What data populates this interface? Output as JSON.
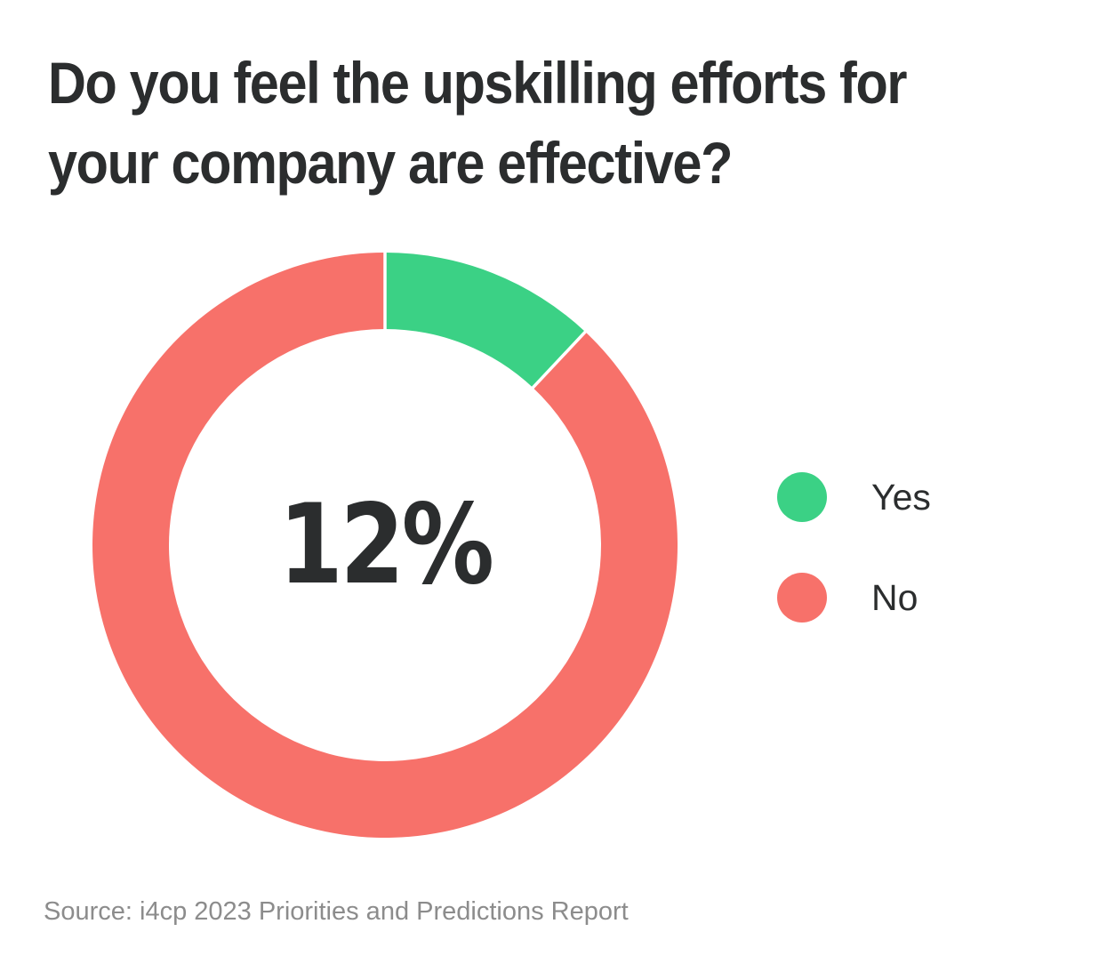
{
  "title": {
    "full": "Do you feel the upskilling efforts for your company are effective?",
    "lines": [
      "Do you feel the upskilling efforts for",
      "your company are effective?"
    ]
  },
  "chart_data": {
    "type": "pie",
    "subtype": "donut",
    "title": "Do you feel the upskilling efforts for your company are effective?",
    "categories": [
      "Yes",
      "No"
    ],
    "values": [
      12,
      88
    ],
    "unit": "%",
    "colors": [
      "#3bd185",
      "#f7716a"
    ],
    "center_label": "12%",
    "start_angle_deg": 0,
    "direction": "clockwise",
    "inner_radius_ratio": 0.74,
    "separator_color": "#ffffff",
    "legend_position": "right"
  },
  "legend": {
    "items": [
      {
        "label": "Yes",
        "color": "#3bd185"
      },
      {
        "label": "No",
        "color": "#f7716a"
      }
    ]
  },
  "source": {
    "text": "Source: i4cp 2023 Priorities and Predictions Report"
  },
  "colors": {
    "title_text": "#2b2d2e",
    "center_label_text": "#2b2d2e",
    "legend_label_text": "#2b2d2e",
    "source_text": "#8c8c8c",
    "background": "#ffffff"
  }
}
